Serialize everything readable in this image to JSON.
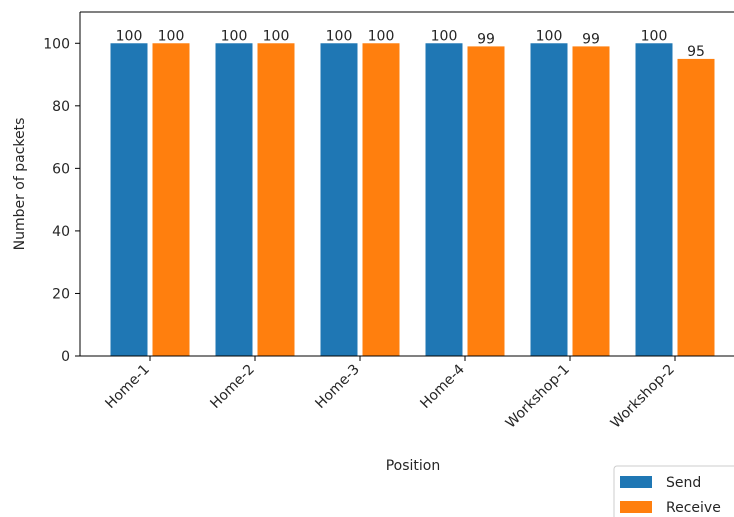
{
  "chart_data": {
    "type": "bar",
    "title": "",
    "xlabel": "Position",
    "ylabel": "Number of packets",
    "categories": [
      "Home-1",
      "Home-2",
      "Home-3",
      "Home-4",
      "Workshop-1",
      "Workshop-2"
    ],
    "series": [
      {
        "name": "Send",
        "color": "#1f77b4",
        "values": [
          100,
          100,
          100,
          100,
          100,
          100
        ]
      },
      {
        "name": "Receive",
        "color": "#ff7f0e",
        "values": [
          100,
          100,
          100,
          99,
          99,
          95
        ]
      }
    ],
    "ylim": [
      0,
      110
    ],
    "yticks": [
      0,
      20,
      40,
      60,
      80,
      100
    ],
    "grid": false,
    "legend_position": "bottom-right"
  }
}
